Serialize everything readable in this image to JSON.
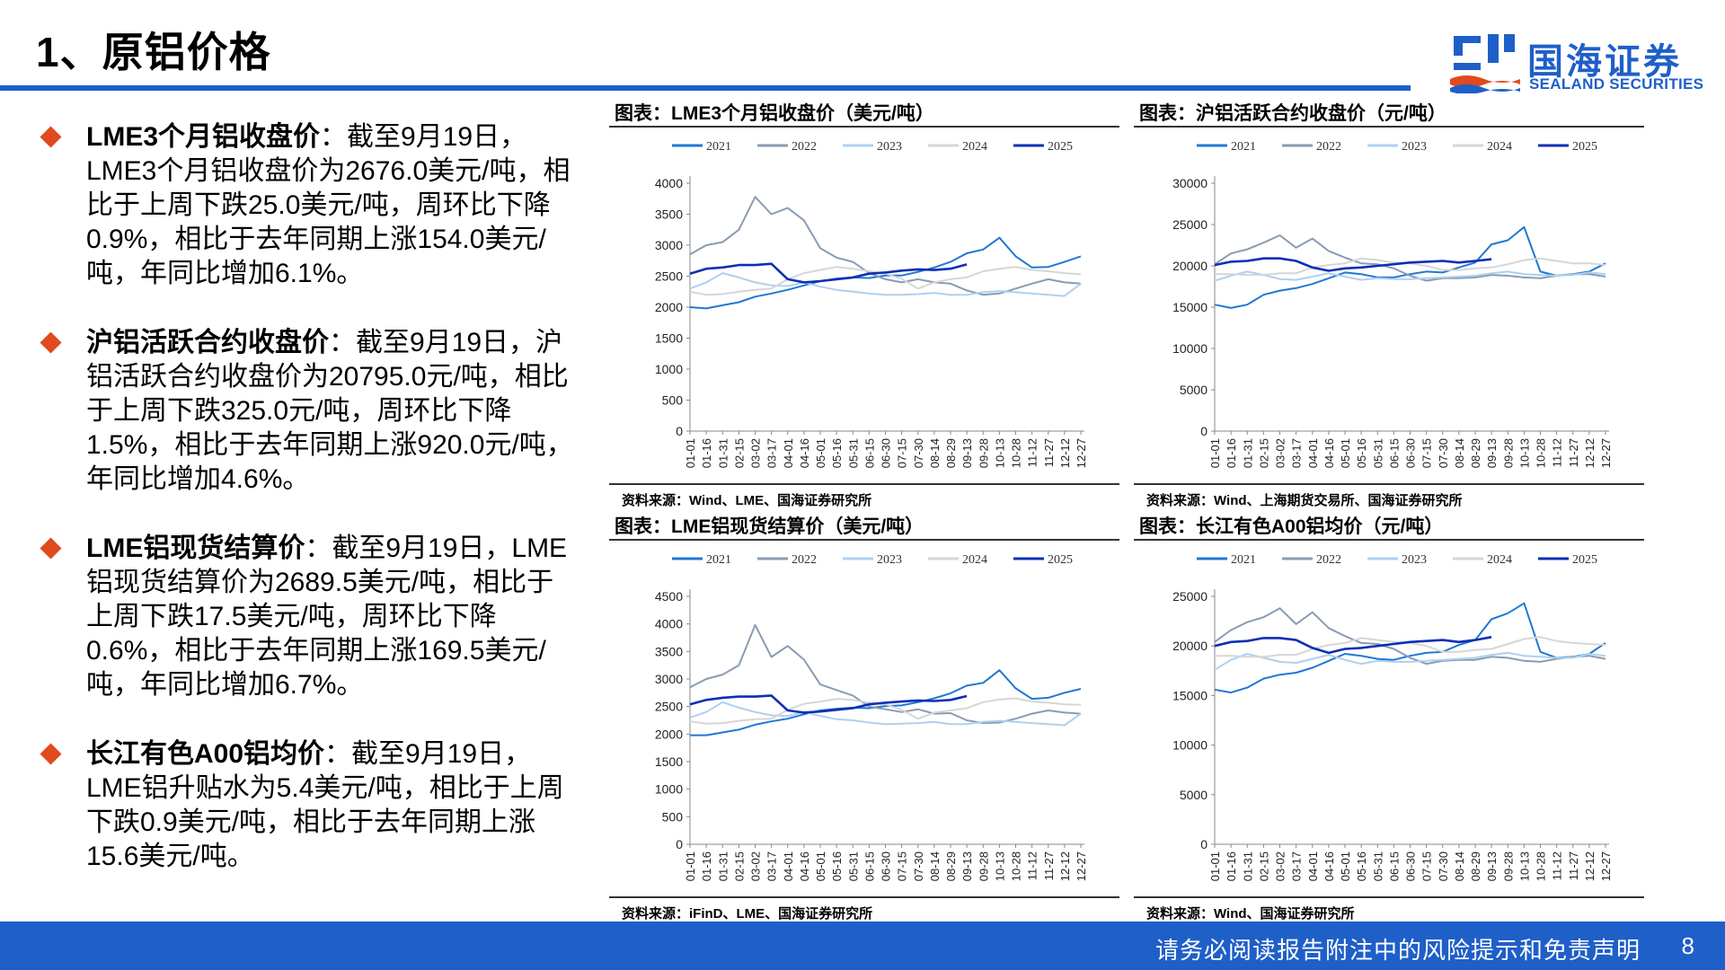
{
  "page": {
    "title": "1、原铝价格",
    "footer": "请务必阅读报告附注中的风险提示和免责声明",
    "page_number": "8"
  },
  "logo": {
    "cn": "国海证券",
    "en": "SEALAND SECURITIES",
    "icon": "sealand-logo-icon"
  },
  "bullets": [
    {
      "head": "LME3个月铝收盘价",
      "body": "：截至9月19日，LME3个月铝收盘价为2676.0美元/吨，相比于上周下跌25.0美元/吨，周环比下降0.9%，相比于去年同期上涨154.0美元/吨，年同比增加6.1%。"
    },
    {
      "head": "沪铝活跃合约收盘价",
      "body": "：截至9月19日，沪铝活跃合约收盘价为20795.0元/吨，相比于上周下跌325.0元/吨，周环比下降1.5%，相比于去年同期上涨920.0元/吨，年同比增加4.6%。"
    },
    {
      "head": "LME铝现货结算价",
      "body": "：截至9月19日，LME铝现货结算价为2689.5美元/吨，相比于上周下跌17.5美元/吨，周环比下降0.6%，相比于去年同期上涨169.5美元/吨，年同比增加6.7%。"
    },
    {
      "head": "长江有色A00铝均价",
      "body": "：截至9月19日，LME铝升贴水为5.4美元/吨，相比于上周下跌0.9美元/吨，相比于去年同期上涨15.6美元/吨。"
    }
  ],
  "colors": {
    "accent": "#1f5fc8",
    "bullet": "#e04a1f",
    "2021": "#1f78d4",
    "2022": "#8a9bb3",
    "2023": "#aed0f0",
    "2024": "#d6d6d6",
    "2025": "#0d2fb5"
  },
  "chart_data": [
    {
      "type": "line",
      "title": "图表：LME3个月铝收盘价（美元/吨）",
      "source": "资料来源：Wind、LME、国海证券研究所",
      "x": [
        "01-01",
        "01-16",
        "01-31",
        "02-15",
        "03-02",
        "03-17",
        "04-01",
        "04-16",
        "05-01",
        "05-16",
        "05-31",
        "06-15",
        "06-30",
        "07-15",
        "07-30",
        "08-14",
        "08-29",
        "09-13",
        "09-28",
        "10-13",
        "10-28",
        "11-12",
        "11-27",
        "12-12",
        "12-27"
      ],
      "ylim": [
        0,
        4000
      ],
      "yticks": [
        0,
        500,
        1000,
        1500,
        2000,
        2500,
        3000,
        3500,
        4000
      ],
      "legend": "top",
      "series": [
        {
          "name": "2021",
          "values": [
            2000,
            1980,
            2030,
            2080,
            2170,
            2220,
            2280,
            2350,
            2420,
            2460,
            2480,
            2470,
            2510,
            2510,
            2570,
            2640,
            2730,
            2870,
            2930,
            3120,
            2820,
            2640,
            2650,
            2730,
            2820
          ]
        },
        {
          "name": "2022",
          "values": [
            2850,
            3000,
            3050,
            3250,
            3780,
            3500,
            3600,
            3400,
            2950,
            2800,
            2730,
            2550,
            2450,
            2400,
            2450,
            2400,
            2380,
            2270,
            2200,
            2220,
            2300,
            2380,
            2450,
            2400,
            2380
          ]
        },
        {
          "name": "2023",
          "values": [
            2300,
            2400,
            2550,
            2480,
            2400,
            2350,
            2340,
            2400,
            2330,
            2280,
            2250,
            2220,
            2200,
            2200,
            2210,
            2230,
            2200,
            2200,
            2240,
            2260,
            2240,
            2220,
            2200,
            2180,
            2380
          ]
        },
        {
          "name": "2024",
          "values": [
            2250,
            2200,
            2210,
            2250,
            2280,
            2300,
            2450,
            2550,
            2600,
            2650,
            2620,
            2580,
            2540,
            2460,
            2300,
            2400,
            2450,
            2480,
            2580,
            2620,
            2650,
            2600,
            2580,
            2550,
            2530
          ]
        },
        {
          "name": "2025",
          "values": [
            2540,
            2620,
            2640,
            2680,
            2680,
            2700,
            2450,
            2400,
            2420,
            2450,
            2480,
            2540,
            2560,
            2590,
            2610,
            2600,
            2620,
            2690,
            null,
            null,
            null,
            null,
            null,
            null,
            null
          ]
        }
      ]
    },
    {
      "type": "line",
      "title": "图表：沪铝活跃合约收盘价（元/吨）",
      "source": "资料来源：Wind、上海期货交易所、国海证券研究所",
      "x": [
        "01-01",
        "01-16",
        "01-31",
        "02-15",
        "03-02",
        "03-17",
        "04-01",
        "04-16",
        "05-01",
        "05-16",
        "05-31",
        "06-15",
        "06-30",
        "07-15",
        "07-30",
        "08-14",
        "08-29",
        "09-13",
        "09-28",
        "10-13",
        "10-28",
        "11-12",
        "11-27",
        "12-12",
        "12-27"
      ],
      "ylim": [
        0,
        30000
      ],
      "yticks": [
        0,
        5000,
        10000,
        15000,
        20000,
        25000,
        30000
      ],
      "legend": "top",
      "series": [
        {
          "name": "2021",
          "values": [
            15300,
            14900,
            15300,
            16500,
            17000,
            17300,
            17800,
            18500,
            19200,
            19000,
            18600,
            18600,
            19000,
            19300,
            19200,
            19800,
            20400,
            22600,
            23100,
            24700,
            19300,
            18800,
            19000,
            19300,
            20300
          ]
        },
        {
          "name": "2022",
          "values": [
            20200,
            21500,
            22000,
            22800,
            23700,
            22200,
            23300,
            21800,
            21000,
            20300,
            20200,
            19700,
            18800,
            18200,
            18500,
            18500,
            18600,
            18900,
            18800,
            18600,
            18500,
            18800,
            19000,
            19000,
            18700
          ]
        },
        {
          "name": "2023",
          "values": [
            18200,
            18800,
            19300,
            18900,
            18400,
            18300,
            18700,
            19100,
            18700,
            18300,
            18500,
            18400,
            18400,
            18500,
            18600,
            18700,
            18800,
            19100,
            19300,
            19000,
            18900,
            18800,
            18900,
            19200,
            19000
          ]
        },
        {
          "name": "2024",
          "values": [
            19000,
            19000,
            18900,
            18900,
            19100,
            19100,
            19800,
            20100,
            20300,
            20900,
            20700,
            20400,
            20300,
            20000,
            19500,
            19500,
            19700,
            19800,
            20200,
            20700,
            20900,
            20600,
            20300,
            20300,
            20100
          ]
        },
        {
          "name": "2025",
          "values": [
            20100,
            20500,
            20600,
            20900,
            20900,
            20600,
            19800,
            19400,
            19700,
            19800,
            20000,
            20200,
            20400,
            20500,
            20600,
            20400,
            20600,
            20800,
            null,
            null,
            null,
            null,
            null,
            null,
            null
          ]
        }
      ]
    },
    {
      "type": "line",
      "title": "图表：LME铝现货结算价（美元/吨）",
      "source": "资料来源：iFinD、LME、国海证券研究所",
      "x": [
        "01-01",
        "01-16",
        "01-31",
        "02-15",
        "03-02",
        "03-17",
        "04-01",
        "04-16",
        "05-01",
        "05-16",
        "05-31",
        "06-15",
        "06-30",
        "07-15",
        "07-30",
        "08-14",
        "08-29",
        "09-13",
        "09-28",
        "10-13",
        "10-28",
        "11-12",
        "11-27",
        "12-12",
        "12-27"
      ],
      "ylim": [
        0,
        4500
      ],
      "yticks": [
        0,
        500,
        1000,
        1500,
        2000,
        2500,
        3000,
        3500,
        4000,
        4500
      ],
      "legend": "top",
      "series": [
        {
          "name": "2021",
          "values": [
            1980,
            1980,
            2030,
            2080,
            2170,
            2230,
            2280,
            2360,
            2430,
            2460,
            2480,
            2470,
            2510,
            2520,
            2580,
            2650,
            2740,
            2880,
            2930,
            3160,
            2830,
            2640,
            2660,
            2750,
            2820
          ]
        },
        {
          "name": "2022",
          "values": [
            2850,
            3000,
            3080,
            3250,
            3980,
            3400,
            3600,
            3350,
            2900,
            2800,
            2700,
            2500,
            2450,
            2400,
            2450,
            2370,
            2380,
            2250,
            2200,
            2210,
            2280,
            2370,
            2430,
            2390,
            2370
          ]
        },
        {
          "name": "2023",
          "values": [
            2300,
            2400,
            2580,
            2480,
            2400,
            2340,
            2330,
            2400,
            2330,
            2270,
            2250,
            2210,
            2180,
            2190,
            2200,
            2220,
            2180,
            2180,
            2220,
            2240,
            2220,
            2200,
            2180,
            2160,
            2370
          ]
        },
        {
          "name": "2024",
          "values": [
            2230,
            2190,
            2200,
            2240,
            2270,
            2280,
            2440,
            2550,
            2590,
            2640,
            2620,
            2570,
            2540,
            2440,
            2280,
            2390,
            2430,
            2470,
            2580,
            2630,
            2650,
            2590,
            2570,
            2540,
            2530
          ]
        },
        {
          "name": "2025",
          "values": [
            2540,
            2620,
            2660,
            2680,
            2680,
            2700,
            2430,
            2390,
            2410,
            2440,
            2470,
            2540,
            2570,
            2590,
            2610,
            2600,
            2620,
            2690,
            null,
            null,
            null,
            null,
            null,
            null,
            null
          ]
        }
      ]
    },
    {
      "type": "line",
      "title": "图表：长江有色A00铝均价（元/吨）",
      "source": "资料来源：Wind、国海证券研究所",
      "x": [
        "01-01",
        "01-16",
        "01-31",
        "02-15",
        "03-02",
        "03-17",
        "04-01",
        "04-16",
        "05-01",
        "05-16",
        "05-31",
        "06-15",
        "06-30",
        "07-15",
        "07-30",
        "08-14",
        "08-29",
        "09-13",
        "09-28",
        "10-13",
        "10-28",
        "11-12",
        "11-27",
        "12-12",
        "12-27"
      ],
      "ylim": [
        0,
        25000
      ],
      "yticks": [
        0,
        5000,
        10000,
        15000,
        20000,
        25000
      ],
      "legend": "top",
      "series": [
        {
          "name": "2021",
          "values": [
            15600,
            15300,
            15800,
            16700,
            17100,
            17300,
            17800,
            18500,
            19200,
            19000,
            18700,
            18600,
            19000,
            19300,
            19400,
            20100,
            20600,
            22700,
            23300,
            24300,
            19400,
            18800,
            18900,
            19200,
            20300
          ]
        },
        {
          "name": "2022",
          "values": [
            20400,
            21600,
            22400,
            22900,
            23800,
            22200,
            23400,
            21800,
            21000,
            20300,
            20200,
            19700,
            18800,
            18200,
            18500,
            18600,
            18600,
            18900,
            18800,
            18500,
            18400,
            18700,
            18900,
            19000,
            18700
          ]
        },
        {
          "name": "2023",
          "values": [
            17600,
            18600,
            19200,
            18800,
            18400,
            18300,
            18700,
            19100,
            18600,
            18200,
            18500,
            18400,
            18400,
            18500,
            18600,
            18700,
            18800,
            19100,
            19300,
            19000,
            18900,
            18800,
            18800,
            19200,
            19000
          ]
        },
        {
          "name": "2024",
          "values": [
            19000,
            19000,
            18900,
            18900,
            19100,
            19100,
            19700,
            20100,
            20300,
            20800,
            20600,
            20400,
            20300,
            20000,
            19400,
            19400,
            19600,
            19700,
            20200,
            20700,
            20900,
            20500,
            20300,
            20200,
            20100
          ]
        },
        {
          "name": "2025",
          "values": [
            20000,
            20400,
            20500,
            20800,
            20800,
            20600,
            19800,
            19300,
            19700,
            19800,
            20000,
            20200,
            20400,
            20500,
            20600,
            20400,
            20600,
            20900,
            null,
            null,
            null,
            null,
            null,
            null,
            null
          ]
        }
      ]
    }
  ]
}
